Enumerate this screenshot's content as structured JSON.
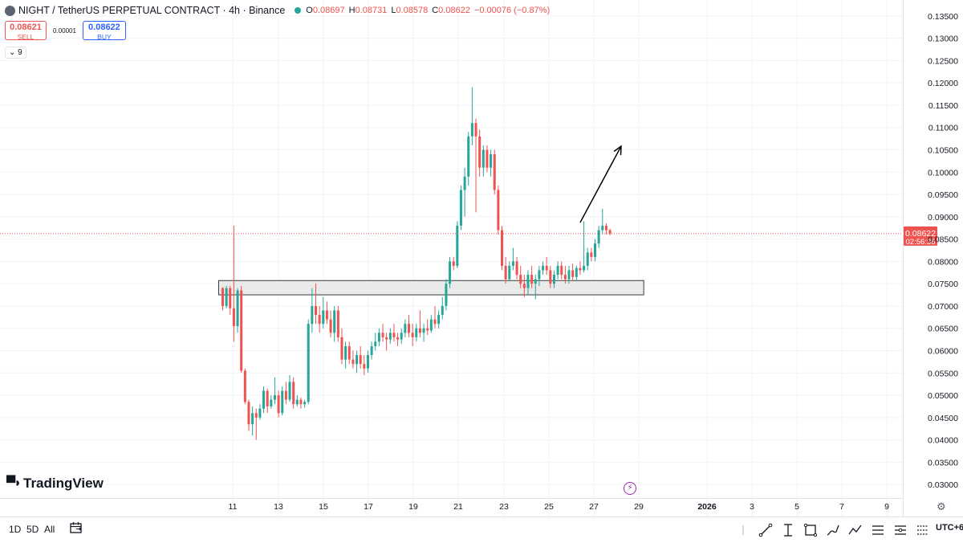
{
  "header": {
    "title": "NIGHT / TetherUS PERPETUAL CONTRACT · 4h · Binance",
    "ohlc": {
      "o_label": "O",
      "o": "0.08697",
      "h_label": "H",
      "h": "0.08731",
      "l_label": "L",
      "l": "0.08578",
      "c_label": "C",
      "c": "0.08622",
      "change": "−0.00076 (−0.87%)"
    }
  },
  "trade": {
    "sell_price": "0.08621",
    "sell_label": "SELL",
    "spread": "0.00001",
    "buy_price": "0.08622",
    "buy_label": "BUY"
  },
  "indicators_toggle": "9",
  "branding": "TradingView",
  "bottom_bar": {
    "range_1d": "1D",
    "range_5d": "5D",
    "range_all": "All",
    "timezone": "UTC+6"
  },
  "colors": {
    "up": "#26a69a",
    "down": "#ef5350",
    "price_line": "#ef5350",
    "zone_fill": "#e6e6e6"
  },
  "icons": [
    "calendar-range-icon",
    "lightning-icon",
    "settings-gear-icon",
    "trend-line-icon",
    "fib-icon",
    "rectangle-icon",
    "brush-icon",
    "path-icon",
    "pattern-icon",
    "long-position-icon",
    "forecast-icon"
  ],
  "chart_data": {
    "type": "candlestick",
    "symbol": "NIGHT / TetherUS PERPETUAL CONTRACT",
    "interval": "4h",
    "exchange": "Binance",
    "y_axis": {
      "ticks": [
        "0.13500",
        "0.13000",
        "0.12500",
        "0.12000",
        "0.11500",
        "0.11000",
        "0.10500",
        "0.10000",
        "0.09500",
        "0.09000",
        "0.08500",
        "0.08000",
        "0.07500",
        "0.07000",
        "0.06500",
        "0.06000",
        "0.05500",
        "0.05000",
        "0.04500",
        "0.04000",
        "0.03500",
        "0.03000"
      ],
      "range": [
        0.0285,
        0.1365
      ]
    },
    "x_axis": {
      "ticks": [
        "11",
        "13",
        "15",
        "17",
        "19",
        "21",
        "23",
        "25",
        "27",
        "29",
        "2026",
        "3",
        "5",
        "7",
        "9"
      ]
    },
    "last_price": {
      "value": 0.08622,
      "label": "0.08622",
      "countdown": "02:56:35"
    },
    "support_zone": {
      "from_index": 0,
      "to_index": 112,
      "low": 0.0725,
      "high": 0.0757
    },
    "arrow": {
      "from_index": 96,
      "from_price": 0.0887,
      "to_index": 107,
      "to_price": 0.1058
    },
    "candles": [
      [
        0.074,
        0.0742,
        0.069,
        0.07
      ],
      [
        0.07,
        0.0745,
        0.0695,
        0.074
      ],
      [
        0.074,
        0.0745,
        0.068,
        0.0695
      ],
      [
        0.0695,
        0.088,
        0.062,
        0.0655
      ],
      [
        0.0655,
        0.074,
        0.064,
        0.0735
      ],
      [
        0.0735,
        0.0745,
        0.055,
        0.0555
      ],
      [
        0.0555,
        0.056,
        0.048,
        0.0485
      ],
      [
        0.0485,
        0.049,
        0.042,
        0.0435
      ],
      [
        0.0435,
        0.0475,
        0.041,
        0.046
      ],
      [
        0.046,
        0.047,
        0.04,
        0.045
      ],
      [
        0.045,
        0.048,
        0.0445,
        0.047
      ],
      [
        0.047,
        0.052,
        0.046,
        0.051
      ],
      [
        0.051,
        0.0515,
        0.046,
        0.0475
      ],
      [
        0.0475,
        0.05,
        0.047,
        0.049
      ],
      [
        0.049,
        0.054,
        0.048,
        0.05
      ],
      [
        0.05,
        0.051,
        0.045,
        0.046
      ],
      [
        0.046,
        0.052,
        0.0455,
        0.051
      ],
      [
        0.051,
        0.053,
        0.048,
        0.049
      ],
      [
        0.049,
        0.0545,
        0.0485,
        0.053
      ],
      [
        0.053,
        0.054,
        0.047,
        0.048
      ],
      [
        0.048,
        0.05,
        0.0475,
        0.049
      ],
      [
        0.049,
        0.0495,
        0.047,
        0.048
      ],
      [
        0.048,
        0.049,
        0.0472,
        0.0485
      ],
      [
        0.0485,
        0.067,
        0.048,
        0.066
      ],
      [
        0.066,
        0.074,
        0.064,
        0.07
      ],
      [
        0.07,
        0.075,
        0.066,
        0.068
      ],
      [
        0.068,
        0.07,
        0.064,
        0.066
      ],
      [
        0.066,
        0.072,
        0.065,
        0.069
      ],
      [
        0.069,
        0.071,
        0.066,
        0.067
      ],
      [
        0.067,
        0.069,
        0.063,
        0.064
      ],
      [
        0.064,
        0.07,
        0.062,
        0.069
      ],
      [
        0.069,
        0.07,
        0.062,
        0.063
      ],
      [
        0.063,
        0.065,
        0.057,
        0.058
      ],
      [
        0.058,
        0.062,
        0.056,
        0.061
      ],
      [
        0.061,
        0.062,
        0.057,
        0.058
      ],
      [
        0.058,
        0.06,
        0.056,
        0.057
      ],
      [
        0.057,
        0.06,
        0.055,
        0.059
      ],
      [
        0.059,
        0.061,
        0.056,
        0.057
      ],
      [
        0.057,
        0.059,
        0.0545,
        0.056
      ],
      [
        0.056,
        0.06,
        0.055,
        0.059
      ],
      [
        0.059,
        0.062,
        0.058,
        0.061
      ],
      [
        0.061,
        0.064,
        0.06,
        0.062
      ],
      [
        0.062,
        0.065,
        0.061,
        0.064
      ],
      [
        0.064,
        0.066,
        0.062,
        0.063
      ],
      [
        0.063,
        0.064,
        0.06,
        0.0625
      ],
      [
        0.0625,
        0.065,
        0.0615,
        0.064
      ],
      [
        0.064,
        0.066,
        0.062,
        0.063
      ],
      [
        0.063,
        0.064,
        0.061,
        0.0625
      ],
      [
        0.0625,
        0.065,
        0.0615,
        0.064
      ],
      [
        0.064,
        0.067,
        0.063,
        0.066
      ],
      [
        0.066,
        0.068,
        0.063,
        0.064
      ],
      [
        0.064,
        0.066,
        0.061,
        0.063
      ],
      [
        0.063,
        0.066,
        0.062,
        0.065
      ],
      [
        0.065,
        0.069,
        0.063,
        0.064
      ],
      [
        0.064,
        0.066,
        0.062,
        0.065
      ],
      [
        0.065,
        0.067,
        0.0635,
        0.0645
      ],
      [
        0.0645,
        0.068,
        0.064,
        0.067
      ],
      [
        0.067,
        0.07,
        0.065,
        0.066
      ],
      [
        0.066,
        0.069,
        0.065,
        0.068
      ],
      [
        0.068,
        0.072,
        0.067,
        0.07
      ],
      [
        0.07,
        0.076,
        0.069,
        0.075
      ],
      [
        0.075,
        0.081,
        0.074,
        0.08
      ],
      [
        0.08,
        0.081,
        0.078,
        0.079
      ],
      [
        0.079,
        0.089,
        0.0785,
        0.088
      ],
      [
        0.088,
        0.097,
        0.087,
        0.096
      ],
      [
        0.096,
        0.101,
        0.09,
        0.099
      ],
      [
        0.099,
        0.109,
        0.097,
        0.108
      ],
      [
        0.108,
        0.119,
        0.106,
        0.111
      ],
      [
        0.111,
        0.112,
        0.091,
        0.108
      ],
      [
        0.108,
        0.1095,
        0.099,
        0.101
      ],
      [
        0.101,
        0.106,
        0.099,
        0.105
      ],
      [
        0.105,
        0.106,
        0.1,
        0.101
      ],
      [
        0.101,
        0.105,
        0.099,
        0.104
      ],
      [
        0.104,
        0.105,
        0.095,
        0.096
      ],
      [
        0.096,
        0.097,
        0.086,
        0.087
      ],
      [
        0.087,
        0.088,
        0.078,
        0.079
      ],
      [
        0.079,
        0.081,
        0.075,
        0.076
      ],
      [
        0.076,
        0.08,
        0.0755,
        0.079
      ],
      [
        0.079,
        0.083,
        0.078,
        0.08
      ],
      [
        0.08,
        0.081,
        0.076,
        0.077
      ],
      [
        0.077,
        0.079,
        0.074,
        0.075
      ],
      [
        0.075,
        0.077,
        0.072,
        0.074
      ],
      [
        0.074,
        0.078,
        0.0725,
        0.077
      ],
      [
        0.077,
        0.079,
        0.074,
        0.075
      ],
      [
        0.075,
        0.077,
        0.0715,
        0.076
      ],
      [
        0.076,
        0.079,
        0.0745,
        0.078
      ],
      [
        0.078,
        0.08,
        0.077,
        0.079
      ],
      [
        0.079,
        0.081,
        0.077,
        0.078
      ],
      [
        0.078,
        0.079,
        0.074,
        0.075
      ],
      [
        0.075,
        0.078,
        0.074,
        0.077
      ],
      [
        0.077,
        0.08,
        0.076,
        0.079
      ],
      [
        0.079,
        0.08,
        0.076,
        0.077
      ],
      [
        0.077,
        0.079,
        0.075,
        0.076
      ],
      [
        0.076,
        0.079,
        0.075,
        0.078
      ],
      [
        0.078,
        0.0795,
        0.0755,
        0.0765
      ],
      [
        0.0765,
        0.079,
        0.0755,
        0.0785
      ],
      [
        0.0785,
        0.08,
        0.077,
        0.078
      ],
      [
        0.078,
        0.089,
        0.0775,
        0.079
      ],
      [
        0.079,
        0.083,
        0.078,
        0.082
      ],
      [
        0.082,
        0.083,
        0.08,
        0.081
      ],
      [
        0.081,
        0.085,
        0.08,
        0.084
      ],
      [
        0.084,
        0.088,
        0.083,
        0.087
      ],
      [
        0.087,
        0.0918,
        0.086,
        0.088
      ],
      [
        0.088,
        0.0885,
        0.086,
        0.087
      ],
      [
        0.087,
        0.0873,
        0.0858,
        0.0862
      ]
    ]
  }
}
